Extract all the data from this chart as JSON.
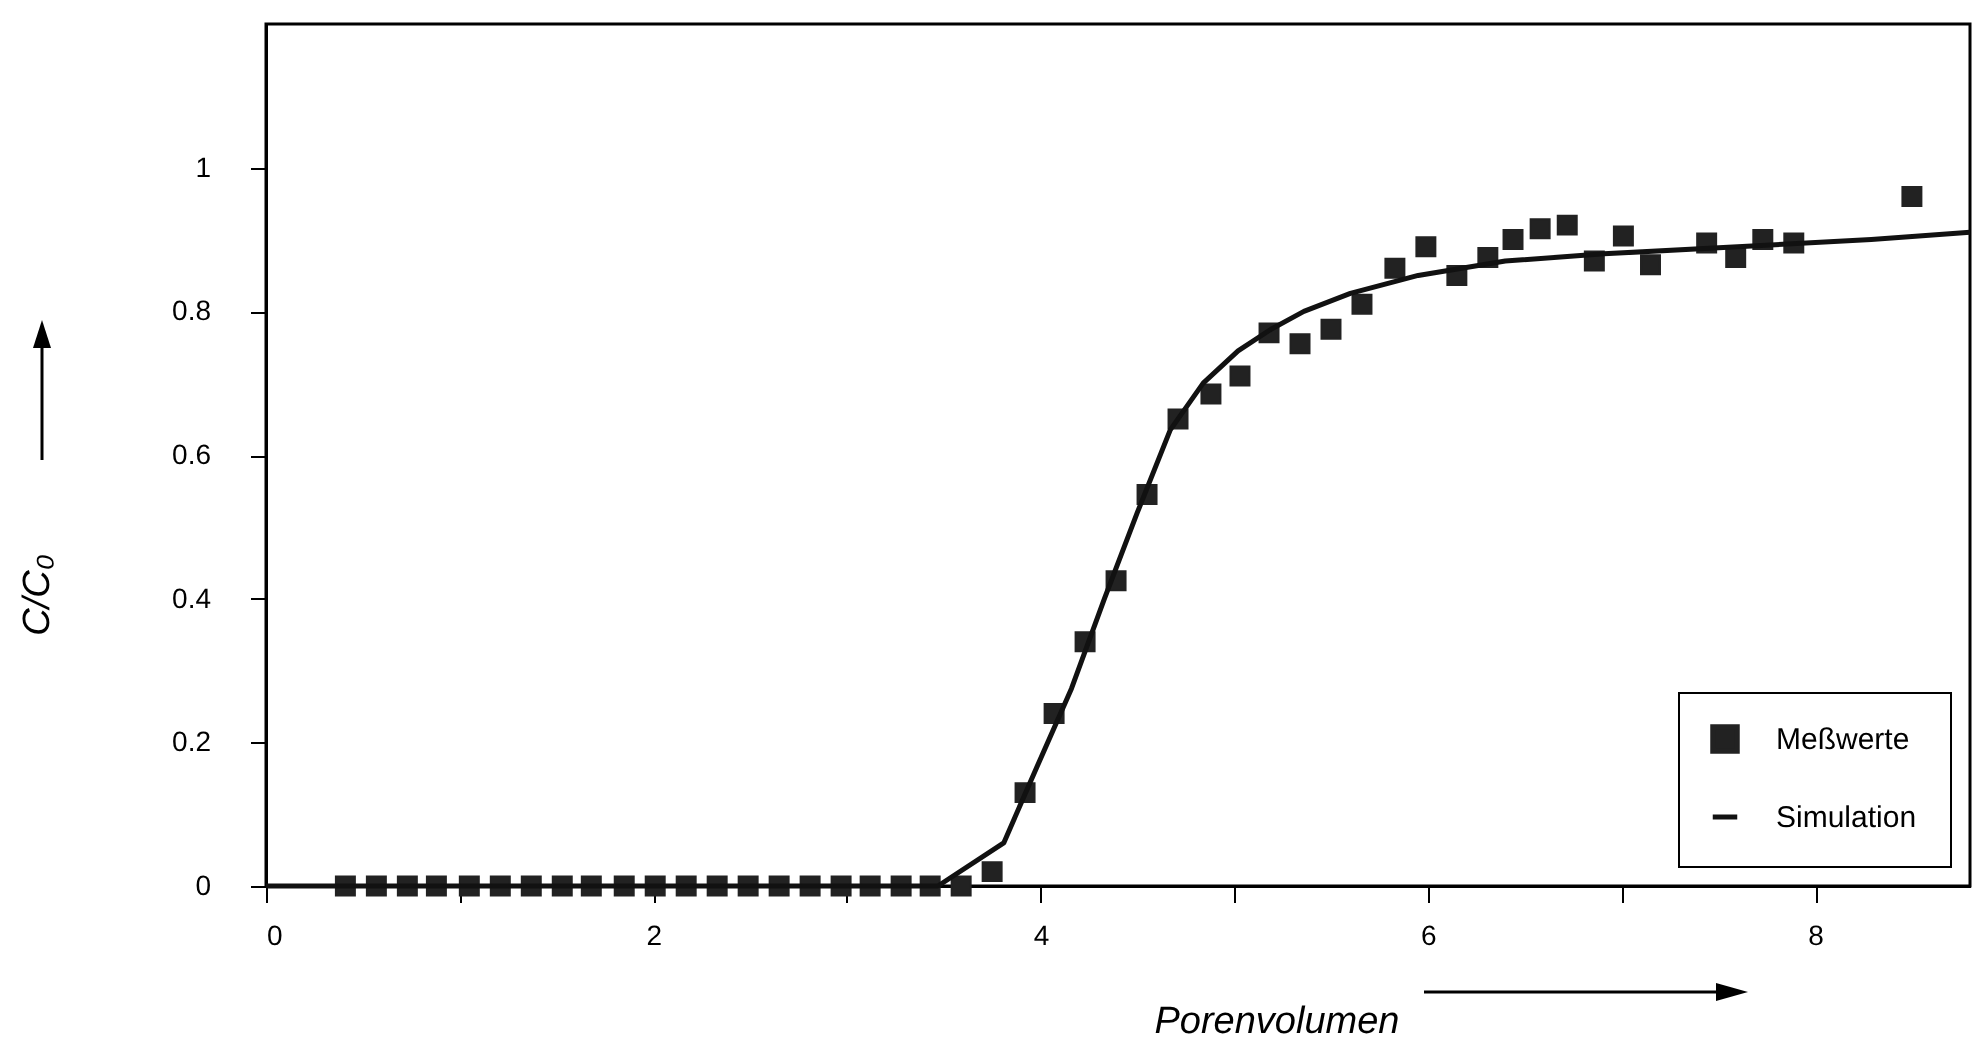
{
  "chart_data": {
    "type": "scatter",
    "xlabel": "Porenvolumen",
    "ylabel": "C/C₀",
    "xlim": [
      0,
      8.8
    ],
    "ylim": [
      0,
      1.2
    ],
    "xticks": [
      0,
      {
        "value": 1,
        "label": null
      },
      2,
      {
        "value": 3,
        "label": null
      },
      4,
      {
        "value": 5,
        "label": null
      },
      6,
      {
        "value": 7,
        "label": null
      },
      8
    ],
    "yticks": [
      0,
      0.2,
      0.4,
      0.6,
      0.8,
      1
    ],
    "grid": false,
    "legend": "bottom right",
    "series": [
      {
        "name": "Meßwerte",
        "marker": "square",
        "color": "#222222",
        "x": [
          0.41,
          0.57,
          0.73,
          0.88,
          1.05,
          1.21,
          1.37,
          1.53,
          1.68,
          1.85,
          2.01,
          2.17,
          2.33,
          2.49,
          2.65,
          2.81,
          2.97,
          3.12,
          3.28,
          3.43,
          3.59,
          3.75,
          3.92,
          4.07,
          4.23,
          4.39,
          4.55,
          4.71,
          4.88,
          5.03,
          5.18,
          5.34,
          5.5,
          5.66,
          5.83,
          5.99,
          6.15,
          6.31,
          6.44,
          6.58,
          6.72,
          6.86,
          7.01,
          7.15,
          7.44,
          7.59,
          7.73,
          7.89,
          8.5
        ],
        "values": [
          0,
          0,
          0,
          0,
          0,
          0,
          0,
          0,
          0,
          0,
          0,
          0,
          0,
          0,
          0,
          0,
          0,
          0,
          0,
          0,
          0,
          0.02,
          0.13,
          0.24,
          0.34,
          0.425,
          0.545,
          0.65,
          0.685,
          0.71,
          0.77,
          0.755,
          0.775,
          0.81,
          0.86,
          0.89,
          0.85,
          0.875,
          0.9,
          0.915,
          0.92,
          0.87,
          0.905,
          0.865,
          0.895,
          0.875,
          0.9,
          0.895,
          0.96
        ]
      },
      {
        "name": "Simulation",
        "type": "line",
        "color": "#111111",
        "line_style": "solid",
        "x": [
          0,
          3.47,
          3.81,
          3.98,
          4.16,
          4.33,
          4.5,
          4.67,
          4.84,
          5.02,
          5.19,
          5.36,
          5.6,
          5.95,
          6.4,
          6.91,
          7.6,
          8.29,
          8.8
        ],
        "values": [
          0,
          0,
          0.06,
          0.165,
          0.275,
          0.4,
          0.52,
          0.635,
          0.7,
          0.745,
          0.775,
          0.8,
          0.825,
          0.85,
          0.87,
          0.88,
          0.89,
          0.9,
          0.91
        ]
      }
    ]
  }
}
